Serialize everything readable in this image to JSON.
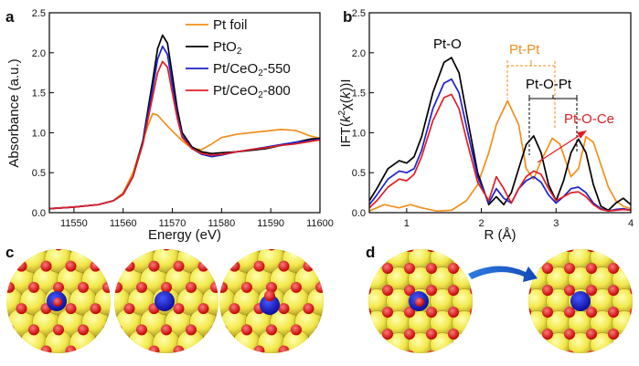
{
  "panel_labels": {
    "a": "a",
    "b": "b",
    "c": "c",
    "d": "d"
  },
  "chart_data": [
    {
      "id": "a",
      "type": "line",
      "title": "",
      "xlabel": "Energy (eV)",
      "ylabel": "Absorbance (a.u.)",
      "xlim": [
        11545,
        11600
      ],
      "ylim": [
        0,
        2.5
      ],
      "xticks": [
        11550,
        11560,
        11570,
        11580,
        11590,
        11600
      ],
      "yticks": [
        0.0,
        0.5,
        1.0,
        1.5,
        2.0,
        2.5
      ],
      "xtick_labels": [
        "11550",
        "11560",
        "11570",
        "11580",
        "11590",
        "11600"
      ],
      "ytick_labels": [
        "0.0",
        "0.5",
        "1.0",
        "1.5",
        "2.0",
        "2.5"
      ],
      "legend": {
        "position": "top-right",
        "entries": [
          {
            "label": "Pt foil",
            "color": "#F28E1C"
          },
          {
            "label": "PtO2",
            "color": "#000000"
          },
          {
            "label": "Pt/CeO2-550",
            "color": "#1E22C8"
          },
          {
            "label": "Pt/CeO2-800",
            "color": "#E01E25"
          }
        ]
      },
      "series": [
        {
          "name": "Pt foil",
          "color": "#F28E1C",
          "x": [
            11545,
            11550,
            11555,
            11558,
            11560,
            11562,
            11564,
            11565,
            11566,
            11567,
            11568,
            11570,
            11572,
            11574,
            11576,
            11578,
            11580,
            11583,
            11586,
            11589,
            11592,
            11595,
            11598,
            11600
          ],
          "values": [
            0.05,
            0.07,
            0.1,
            0.15,
            0.25,
            0.5,
            0.9,
            1.08,
            1.24,
            1.22,
            1.15,
            1.02,
            0.9,
            0.8,
            0.79,
            0.86,
            0.94,
            0.98,
            1.0,
            1.02,
            1.04,
            1.03,
            0.96,
            0.93
          ]
        },
        {
          "name": "PtO2",
          "color": "#000000",
          "x": [
            11545,
            11550,
            11555,
            11558,
            11560,
            11562,
            11564,
            11566,
            11567,
            11568,
            11569,
            11570,
            11571,
            11572,
            11574,
            11576,
            11578,
            11580,
            11583,
            11586,
            11589,
            11592,
            11595,
            11598,
            11600
          ],
          "values": [
            0.05,
            0.07,
            0.1,
            0.15,
            0.23,
            0.45,
            0.9,
            1.65,
            2.05,
            2.22,
            2.12,
            1.72,
            1.3,
            1.0,
            0.82,
            0.76,
            0.74,
            0.75,
            0.76,
            0.78,
            0.8,
            0.84,
            0.88,
            0.92,
            0.93
          ]
        },
        {
          "name": "Pt/CeO2-550",
          "color": "#1E22C8",
          "x": [
            11545,
            11550,
            11555,
            11558,
            11560,
            11562,
            11564,
            11566,
            11567,
            11568,
            11569,
            11570,
            11571,
            11572,
            11574,
            11576,
            11578,
            11580,
            11583,
            11586,
            11589,
            11592,
            11595,
            11598,
            11600
          ],
          "values": [
            0.05,
            0.07,
            0.1,
            0.15,
            0.23,
            0.45,
            0.88,
            1.55,
            1.92,
            2.08,
            1.98,
            1.6,
            1.22,
            0.96,
            0.8,
            0.73,
            0.7,
            0.72,
            0.76,
            0.79,
            0.82,
            0.85,
            0.88,
            0.9,
            0.92
          ]
        },
        {
          "name": "Pt/CeO2-800",
          "color": "#E01E25",
          "x": [
            11545,
            11550,
            11555,
            11558,
            11560,
            11562,
            11564,
            11566,
            11567,
            11568,
            11569,
            11570,
            11571,
            11572,
            11574,
            11576,
            11578,
            11580,
            11583,
            11586,
            11589,
            11592,
            11595,
            11598,
            11600
          ],
          "values": [
            0.05,
            0.07,
            0.1,
            0.15,
            0.23,
            0.45,
            0.86,
            1.45,
            1.75,
            1.89,
            1.82,
            1.5,
            1.18,
            0.94,
            0.8,
            0.74,
            0.72,
            0.73,
            0.76,
            0.79,
            0.81,
            0.84,
            0.86,
            0.89,
            0.91
          ]
        }
      ]
    },
    {
      "id": "b",
      "type": "line",
      "title": "",
      "xlabel": "R (Å)",
      "ylabel": "IFT(k²χ(k))I",
      "ylabel_parts": [
        "IFT(",
        "k",
        "2",
        "χ(",
        "k",
        "))I"
      ],
      "xlim": [
        0.5,
        4
      ],
      "ylim": [
        0,
        2.5
      ],
      "xticks": [
        1,
        2,
        3,
        4
      ],
      "yticks": [
        0.0,
        0.5,
        1.0,
        1.5,
        2.0,
        2.5
      ],
      "xtick_labels": [
        "1",
        "2",
        "3",
        "4"
      ],
      "ytick_labels": [
        "0.0",
        "0.5",
        "1.0",
        "1.5",
        "2.0",
        "2.5"
      ],
      "annotations": [
        {
          "text": "Pt-O",
          "color": "#000000"
        },
        {
          "text": "Pt-Pt",
          "color": "#F28E1C"
        },
        {
          "text": "Pt-O-Pt",
          "color": "#000000"
        },
        {
          "text": "Pt-O-Ce",
          "color": "#E01E25"
        }
      ],
      "series": [
        {
          "name": "Pt foil",
          "color": "#F28E1C",
          "x": [
            0.5,
            0.7,
            0.9,
            1.05,
            1.2,
            1.4,
            1.6,
            1.8,
            1.95,
            2.1,
            2.2,
            2.35,
            2.5,
            2.6,
            2.7,
            2.8,
            2.95,
            3.05,
            3.2,
            3.3,
            3.4,
            3.5,
            3.6,
            3.7,
            3.8,
            3.9,
            4.0
          ],
          "values": [
            0.02,
            0.1,
            0.06,
            0.1,
            0.06,
            0.02,
            0.03,
            0.15,
            0.35,
            0.75,
            1.1,
            1.4,
            1.1,
            0.55,
            0.42,
            0.65,
            0.93,
            0.86,
            0.45,
            0.55,
            0.95,
            0.88,
            0.6,
            0.32,
            0.15,
            0.08,
            0.05
          ]
        },
        {
          "name": "PtO2",
          "color": "#000000",
          "x": [
            0.5,
            0.6,
            0.75,
            0.9,
            1.0,
            1.1,
            1.2,
            1.35,
            1.5,
            1.6,
            1.7,
            1.8,
            1.95,
            2.1,
            2.2,
            2.3,
            2.4,
            2.5,
            2.6,
            2.7,
            2.8,
            2.9,
            3.0,
            3.1,
            3.2,
            3.3,
            3.4,
            3.5,
            3.6,
            3.7,
            3.8,
            3.9,
            4.0
          ],
          "values": [
            0.15,
            0.3,
            0.55,
            0.65,
            0.62,
            0.7,
            0.95,
            1.5,
            1.88,
            1.94,
            1.75,
            1.25,
            0.5,
            0.1,
            0.2,
            0.1,
            0.25,
            0.55,
            0.85,
            0.96,
            0.75,
            0.35,
            0.15,
            0.4,
            0.75,
            0.92,
            0.75,
            0.35,
            0.08,
            0.03,
            0.12,
            0.18,
            0.1
          ]
        },
        {
          "name": "Pt/CeO2-550",
          "color": "#1E22C8",
          "x": [
            0.5,
            0.6,
            0.75,
            0.9,
            1.0,
            1.1,
            1.2,
            1.35,
            1.5,
            1.6,
            1.7,
            1.8,
            1.95,
            2.1,
            2.2,
            2.3,
            2.4,
            2.5,
            2.6,
            2.7,
            2.8,
            2.9,
            3.0,
            3.1,
            3.2,
            3.3,
            3.4,
            3.5,
            3.6,
            3.7,
            3.8,
            3.9,
            4.0
          ],
          "values": [
            0.1,
            0.22,
            0.42,
            0.52,
            0.5,
            0.55,
            0.78,
            1.3,
            1.62,
            1.67,
            1.5,
            1.08,
            0.45,
            0.12,
            0.3,
            0.18,
            0.12,
            0.3,
            0.4,
            0.45,
            0.38,
            0.22,
            0.12,
            0.2,
            0.3,
            0.32,
            0.25,
            0.12,
            0.05,
            0.02,
            0.04,
            0.05,
            0.03
          ]
        },
        {
          "name": "Pt/CeO2-800",
          "color": "#E01E25",
          "x": [
            0.5,
            0.6,
            0.75,
            0.9,
            1.0,
            1.1,
            1.2,
            1.35,
            1.5,
            1.6,
            1.7,
            1.8,
            1.95,
            2.1,
            2.2,
            2.3,
            2.4,
            2.5,
            2.6,
            2.7,
            2.8,
            2.9,
            3.0,
            3.1,
            3.2,
            3.3,
            3.4,
            3.5,
            3.6,
            3.7,
            3.8,
            3.9,
            4.0
          ],
          "values": [
            0.06,
            0.15,
            0.32,
            0.42,
            0.4,
            0.48,
            0.7,
            1.15,
            1.44,
            1.48,
            1.3,
            0.92,
            0.38,
            0.15,
            0.45,
            0.3,
            0.12,
            0.3,
            0.45,
            0.52,
            0.48,
            0.3,
            0.15,
            0.2,
            0.25,
            0.26,
            0.2,
            0.1,
            0.04,
            0.02,
            0.03,
            0.04,
            0.03
          ]
        }
      ]
    }
  ]
}
